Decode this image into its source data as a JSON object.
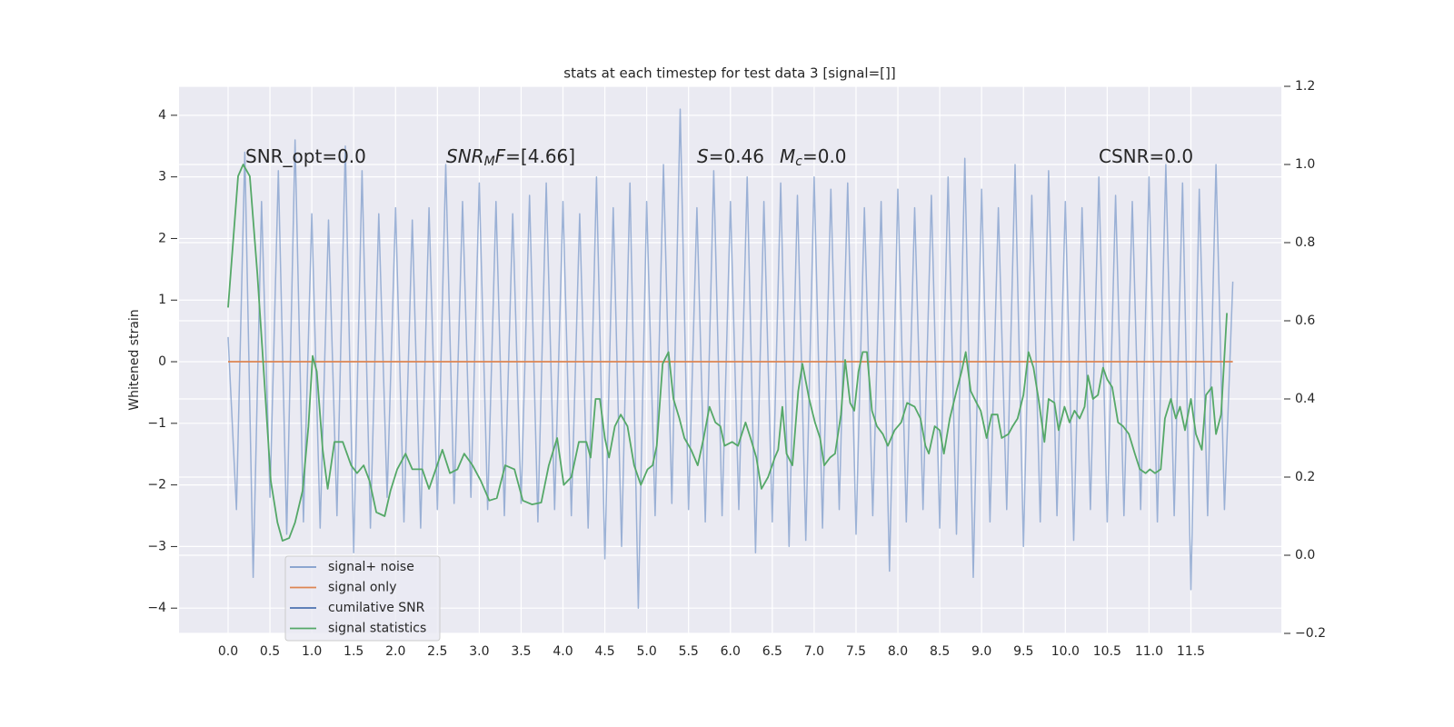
{
  "chart_data": {
    "type": "line",
    "title": "stats at each timestep for test data 3 [signal=[]]",
    "y_label": "Whitened strain",
    "xlim": [
      -0.586,
      12.58
    ],
    "ylim": [
      -4.41,
      4.47
    ],
    "y2lim": [
      -0.2,
      1.2
    ],
    "grid": true,
    "legend_loc": "lower left",
    "xticks": [
      {
        "value": 0,
        "label": "0.0"
      },
      {
        "value": 0.5,
        "label": "0.5"
      },
      {
        "value": 1,
        "label": "1.0"
      },
      {
        "value": 1.5,
        "label": "1.5"
      },
      {
        "value": 2,
        "label": "2.0"
      },
      {
        "value": 2.5,
        "label": "2.5"
      },
      {
        "value": 3,
        "label": "3.0"
      },
      {
        "value": 3.5,
        "label": "3.5"
      },
      {
        "value": 4,
        "label": "4.0"
      },
      {
        "value": 4.5,
        "label": "4.5"
      },
      {
        "value": 5,
        "label": "5.0"
      },
      {
        "value": 5.5,
        "label": "5.5"
      },
      {
        "value": 6,
        "label": "6.0"
      },
      {
        "value": 6.5,
        "label": "6.5"
      },
      {
        "value": 7,
        "label": "7.0"
      },
      {
        "value": 7.5,
        "label": "7.5"
      },
      {
        "value": 8,
        "label": "8.0"
      },
      {
        "value": 8.5,
        "label": "8.5"
      },
      {
        "value": 9,
        "label": "9.0"
      },
      {
        "value": 9.5,
        "label": "9.5"
      },
      {
        "value": 10,
        "label": "10.0"
      },
      {
        "value": 10.5,
        "label": "10.5"
      },
      {
        "value": 11,
        "label": "11.0"
      },
      {
        "value": 11.5,
        "label": "11.5"
      }
    ],
    "yticks": [
      {
        "value": -4,
        "label": "−4"
      },
      {
        "value": -3,
        "label": "−3"
      },
      {
        "value": -2,
        "label": "−2"
      },
      {
        "value": -1,
        "label": "−1"
      },
      0,
      1,
      2,
      3,
      4
    ],
    "y2ticks": [
      {
        "value": -0.2,
        "label": "−0.2"
      },
      {
        "value": 0,
        "label": "0.0"
      },
      0.2,
      0.4,
      0.6,
      0.8,
      {
        "value": 1,
        "label": "1.0"
      },
      1.2
    ],
    "annotations": [
      {
        "parts": [
          {
            "text": "SNR_opt=0.0"
          }
        ]
      },
      {
        "parts": [
          {
            "text": "SNR",
            "style": "italic"
          },
          {
            "text": "M",
            "style": "sub-italic"
          },
          {
            "text": "F",
            "style": "italic"
          },
          {
            "text": "=[4.66]"
          }
        ]
      },
      {
        "parts": [
          {
            "text": "S",
            "style": "italic"
          },
          {
            "text": "=0.46"
          }
        ]
      },
      {
        "parts": [
          {
            "text": "M",
            "style": "italic"
          },
          {
            "text": "c",
            "style": "sub-italic"
          },
          {
            "text": "=0.0"
          }
        ]
      },
      {
        "parts": [
          {
            "text": "CSNR=0.0"
          }
        ]
      }
    ],
    "series": [
      {
        "name": "signal+ noise",
        "color": "#7f9ccb",
        "x": [
          0,
          0.1,
          0.2,
          0.3,
          0.4,
          0.5,
          0.6,
          0.7,
          0.8,
          0.9,
          1,
          1.1,
          1.2,
          1.3,
          1.4,
          1.5,
          1.6,
          1.7,
          1.8,
          1.9,
          2,
          2.1,
          2.2,
          2.3,
          2.4,
          2.5,
          2.6,
          2.7,
          2.8,
          2.9,
          3,
          3.1,
          3.2,
          3.3,
          3.4,
          3.5,
          3.6,
          3.7,
          3.8,
          3.9,
          4,
          4.1,
          4.2,
          4.3,
          4.4,
          4.5,
          4.6,
          4.7,
          4.8,
          4.9,
          5,
          5.1,
          5.2,
          5.3,
          5.4,
          5.5,
          5.6,
          5.7,
          5.8,
          5.9,
          6,
          6.1,
          6.2,
          6.3,
          6.4,
          6.5,
          6.6,
          6.7,
          6.8,
          6.9,
          7,
          7.1,
          7.2,
          7.3,
          7.4,
          7.5,
          7.6,
          7.7,
          7.8,
          7.9,
          8,
          8.1,
          8.2,
          8.3,
          8.4,
          8.5,
          8.6,
          8.7,
          8.8,
          8.9,
          9,
          9.1,
          9.2,
          9.3,
          9.4,
          9.5,
          9.6,
          9.7,
          9.8,
          9.9,
          10,
          10.1,
          10.2,
          10.3,
          10.4,
          10.5,
          10.6,
          10.7,
          10.8,
          10.9,
          11,
          11.1,
          11.2,
          11.3,
          11.4,
          11.5,
          11.6,
          11.7,
          11.8,
          11.9,
          12
        ],
        "values": [
          0.4,
          -2.4,
          3.4,
          -3.5,
          2.6,
          -2.2,
          3.1,
          -2.8,
          3.6,
          -2.6,
          2.4,
          -2.7,
          2.3,
          -2.5,
          3.5,
          -3.1,
          3.1,
          -2.7,
          2.4,
          -2.2,
          2.5,
          -2.6,
          2.3,
          -2.7,
          2.5,
          -2.4,
          3.2,
          -2.3,
          2.6,
          -2.2,
          2.9,
          -2.4,
          2.6,
          -2.5,
          2.4,
          -2.3,
          2.7,
          -2.6,
          2.9,
          -2.4,
          2.6,
          -2.5,
          2.4,
          -2.7,
          3.0,
          -3.2,
          2.5,
          -3.0,
          2.9,
          -4.0,
          2.6,
          -2.5,
          3.2,
          -2.3,
          4.1,
          -2.4,
          2.5,
          -2.6,
          3.1,
          -2.5,
          2.6,
          -2.4,
          3.0,
          -3.1,
          2.6,
          -2.6,
          2.9,
          -3.0,
          2.7,
          -2.9,
          3.0,
          -2.7,
          2.8,
          -2.4,
          2.9,
          -2.8,
          2.5,
          -2.5,
          2.6,
          -3.4,
          2.8,
          -2.6,
          2.5,
          -2.4,
          2.7,
          -2.7,
          3.0,
          -2.8,
          3.3,
          -3.5,
          2.8,
          -2.6,
          2.5,
          -2.4,
          3.2,
          -3.0,
          2.7,
          -2.6,
          3.1,
          -2.5,
          2.6,
          -2.9,
          2.5,
          -2.4,
          3.0,
          -2.6,
          2.7,
          -2.5,
          2.6,
          -2.4,
          3.0,
          -2.6,
          3.2,
          -2.5,
          2.9,
          -3.7,
          2.8,
          -2.5,
          3.2,
          -2.4,
          1.3
        ]
      },
      {
        "name": "signal only",
        "color": "#dd8452",
        "x": [
          0,
          12
        ],
        "values": [
          0,
          0
        ]
      },
      {
        "name": "cumilative SNR",
        "color": "#4c72b0",
        "x": [],
        "values": []
      },
      {
        "name": "signal statistics",
        "color": "#55a868",
        "axis": "y2",
        "x": [
          0,
          0.12,
          0.18,
          0.26,
          0.35,
          0.42,
          0.51,
          0.59,
          0.65,
          0.73,
          0.8,
          0.89,
          0.96,
          1.01,
          1.06,
          1.13,
          1.19,
          1.27,
          1.37,
          1.47,
          1.54,
          1.62,
          1.69,
          1.77,
          1.87,
          1.94,
          2.02,
          2.12,
          2.2,
          2.32,
          2.4,
          2.48,
          2.56,
          2.65,
          2.74,
          2.82,
          2.92,
          3.02,
          3.12,
          3.21,
          3.31,
          3.42,
          3.52,
          3.63,
          3.74,
          3.83,
          3.93,
          4.01,
          4.1,
          4.19,
          4.28,
          4.33,
          4.39,
          4.44,
          4.5,
          4.55,
          4.62,
          4.69,
          4.77,
          4.85,
          4.93,
          5.01,
          5.07,
          5.12,
          5.19,
          5.26,
          5.32,
          5.39,
          5.45,
          5.53,
          5.61,
          5.68,
          5.75,
          5.82,
          5.88,
          5.93,
          6.02,
          6.09,
          6.18,
          6.24,
          6.31,
          6.37,
          6.45,
          6.53,
          6.57,
          6.62,
          6.67,
          6.74,
          6.81,
          6.86,
          6.94,
          7.01,
          7.07,
          7.12,
          7.19,
          7.25,
          7.32,
          7.37,
          7.43,
          7.48,
          7.53,
          7.58,
          7.63,
          7.69,
          7.75,
          7.82,
          7.88,
          7.96,
          8.04,
          8.11,
          8.2,
          8.27,
          8.33,
          8.37,
          8.44,
          8.5,
          8.55,
          8.62,
          8.7,
          8.76,
          8.81,
          8.87,
          8.94,
          8.99,
          9.06,
          9.12,
          9.19,
          9.24,
          9.32,
          9.37,
          9.43,
          9.5,
          9.56,
          9.62,
          9.68,
          9.75,
          9.8,
          9.87,
          9.92,
          9.99,
          10.05,
          10.11,
          10.17,
          10.23,
          10.27,
          10.33,
          10.39,
          10.45,
          10.5,
          10.56,
          10.63,
          10.69,
          10.76,
          10.83,
          10.89,
          10.96,
          11.01,
          11.07,
          11.14,
          11.19,
          11.26,
          11.32,
          11.37,
          11.43,
          11.5,
          11.56,
          11.63,
          11.68,
          11.75,
          11.8,
          11.86,
          11.93
        ],
        "values": [
          0.634,
          0.97,
          1.0,
          0.97,
          0.72,
          0.49,
          0.19,
          0.084,
          0.037,
          0.044,
          0.084,
          0.165,
          0.33,
          0.51,
          0.47,
          0.27,
          0.17,
          0.29,
          0.29,
          0.23,
          0.21,
          0.23,
          0.19,
          0.11,
          0.1,
          0.165,
          0.22,
          0.26,
          0.22,
          0.22,
          0.17,
          0.22,
          0.27,
          0.21,
          0.22,
          0.26,
          0.23,
          0.19,
          0.14,
          0.146,
          0.23,
          0.22,
          0.14,
          0.13,
          0.135,
          0.23,
          0.3,
          0.18,
          0.2,
          0.29,
          0.29,
          0.25,
          0.4,
          0.4,
          0.3,
          0.25,
          0.33,
          0.36,
          0.33,
          0.23,
          0.18,
          0.22,
          0.23,
          0.28,
          0.49,
          0.52,
          0.4,
          0.35,
          0.3,
          0.27,
          0.23,
          0.3,
          0.38,
          0.34,
          0.33,
          0.28,
          0.29,
          0.28,
          0.34,
          0.3,
          0.25,
          0.17,
          0.2,
          0.25,
          0.27,
          0.38,
          0.26,
          0.23,
          0.42,
          0.49,
          0.4,
          0.34,
          0.3,
          0.23,
          0.25,
          0.26,
          0.36,
          0.5,
          0.39,
          0.37,
          0.47,
          0.52,
          0.52,
          0.37,
          0.33,
          0.31,
          0.28,
          0.32,
          0.34,
          0.39,
          0.38,
          0.35,
          0.28,
          0.26,
          0.33,
          0.32,
          0.26,
          0.35,
          0.42,
          0.47,
          0.52,
          0.42,
          0.39,
          0.37,
          0.3,
          0.36,
          0.36,
          0.3,
          0.31,
          0.33,
          0.35,
          0.41,
          0.52,
          0.48,
          0.4,
          0.29,
          0.4,
          0.39,
          0.32,
          0.38,
          0.34,
          0.37,
          0.35,
          0.38,
          0.46,
          0.4,
          0.41,
          0.48,
          0.45,
          0.43,
          0.34,
          0.33,
          0.31,
          0.26,
          0.22,
          0.21,
          0.22,
          0.21,
          0.22,
          0.35,
          0.4,
          0.35,
          0.38,
          0.32,
          0.4,
          0.31,
          0.27,
          0.41,
          0.43,
          0.31,
          0.36,
          0.62
        ]
      }
    ]
  }
}
